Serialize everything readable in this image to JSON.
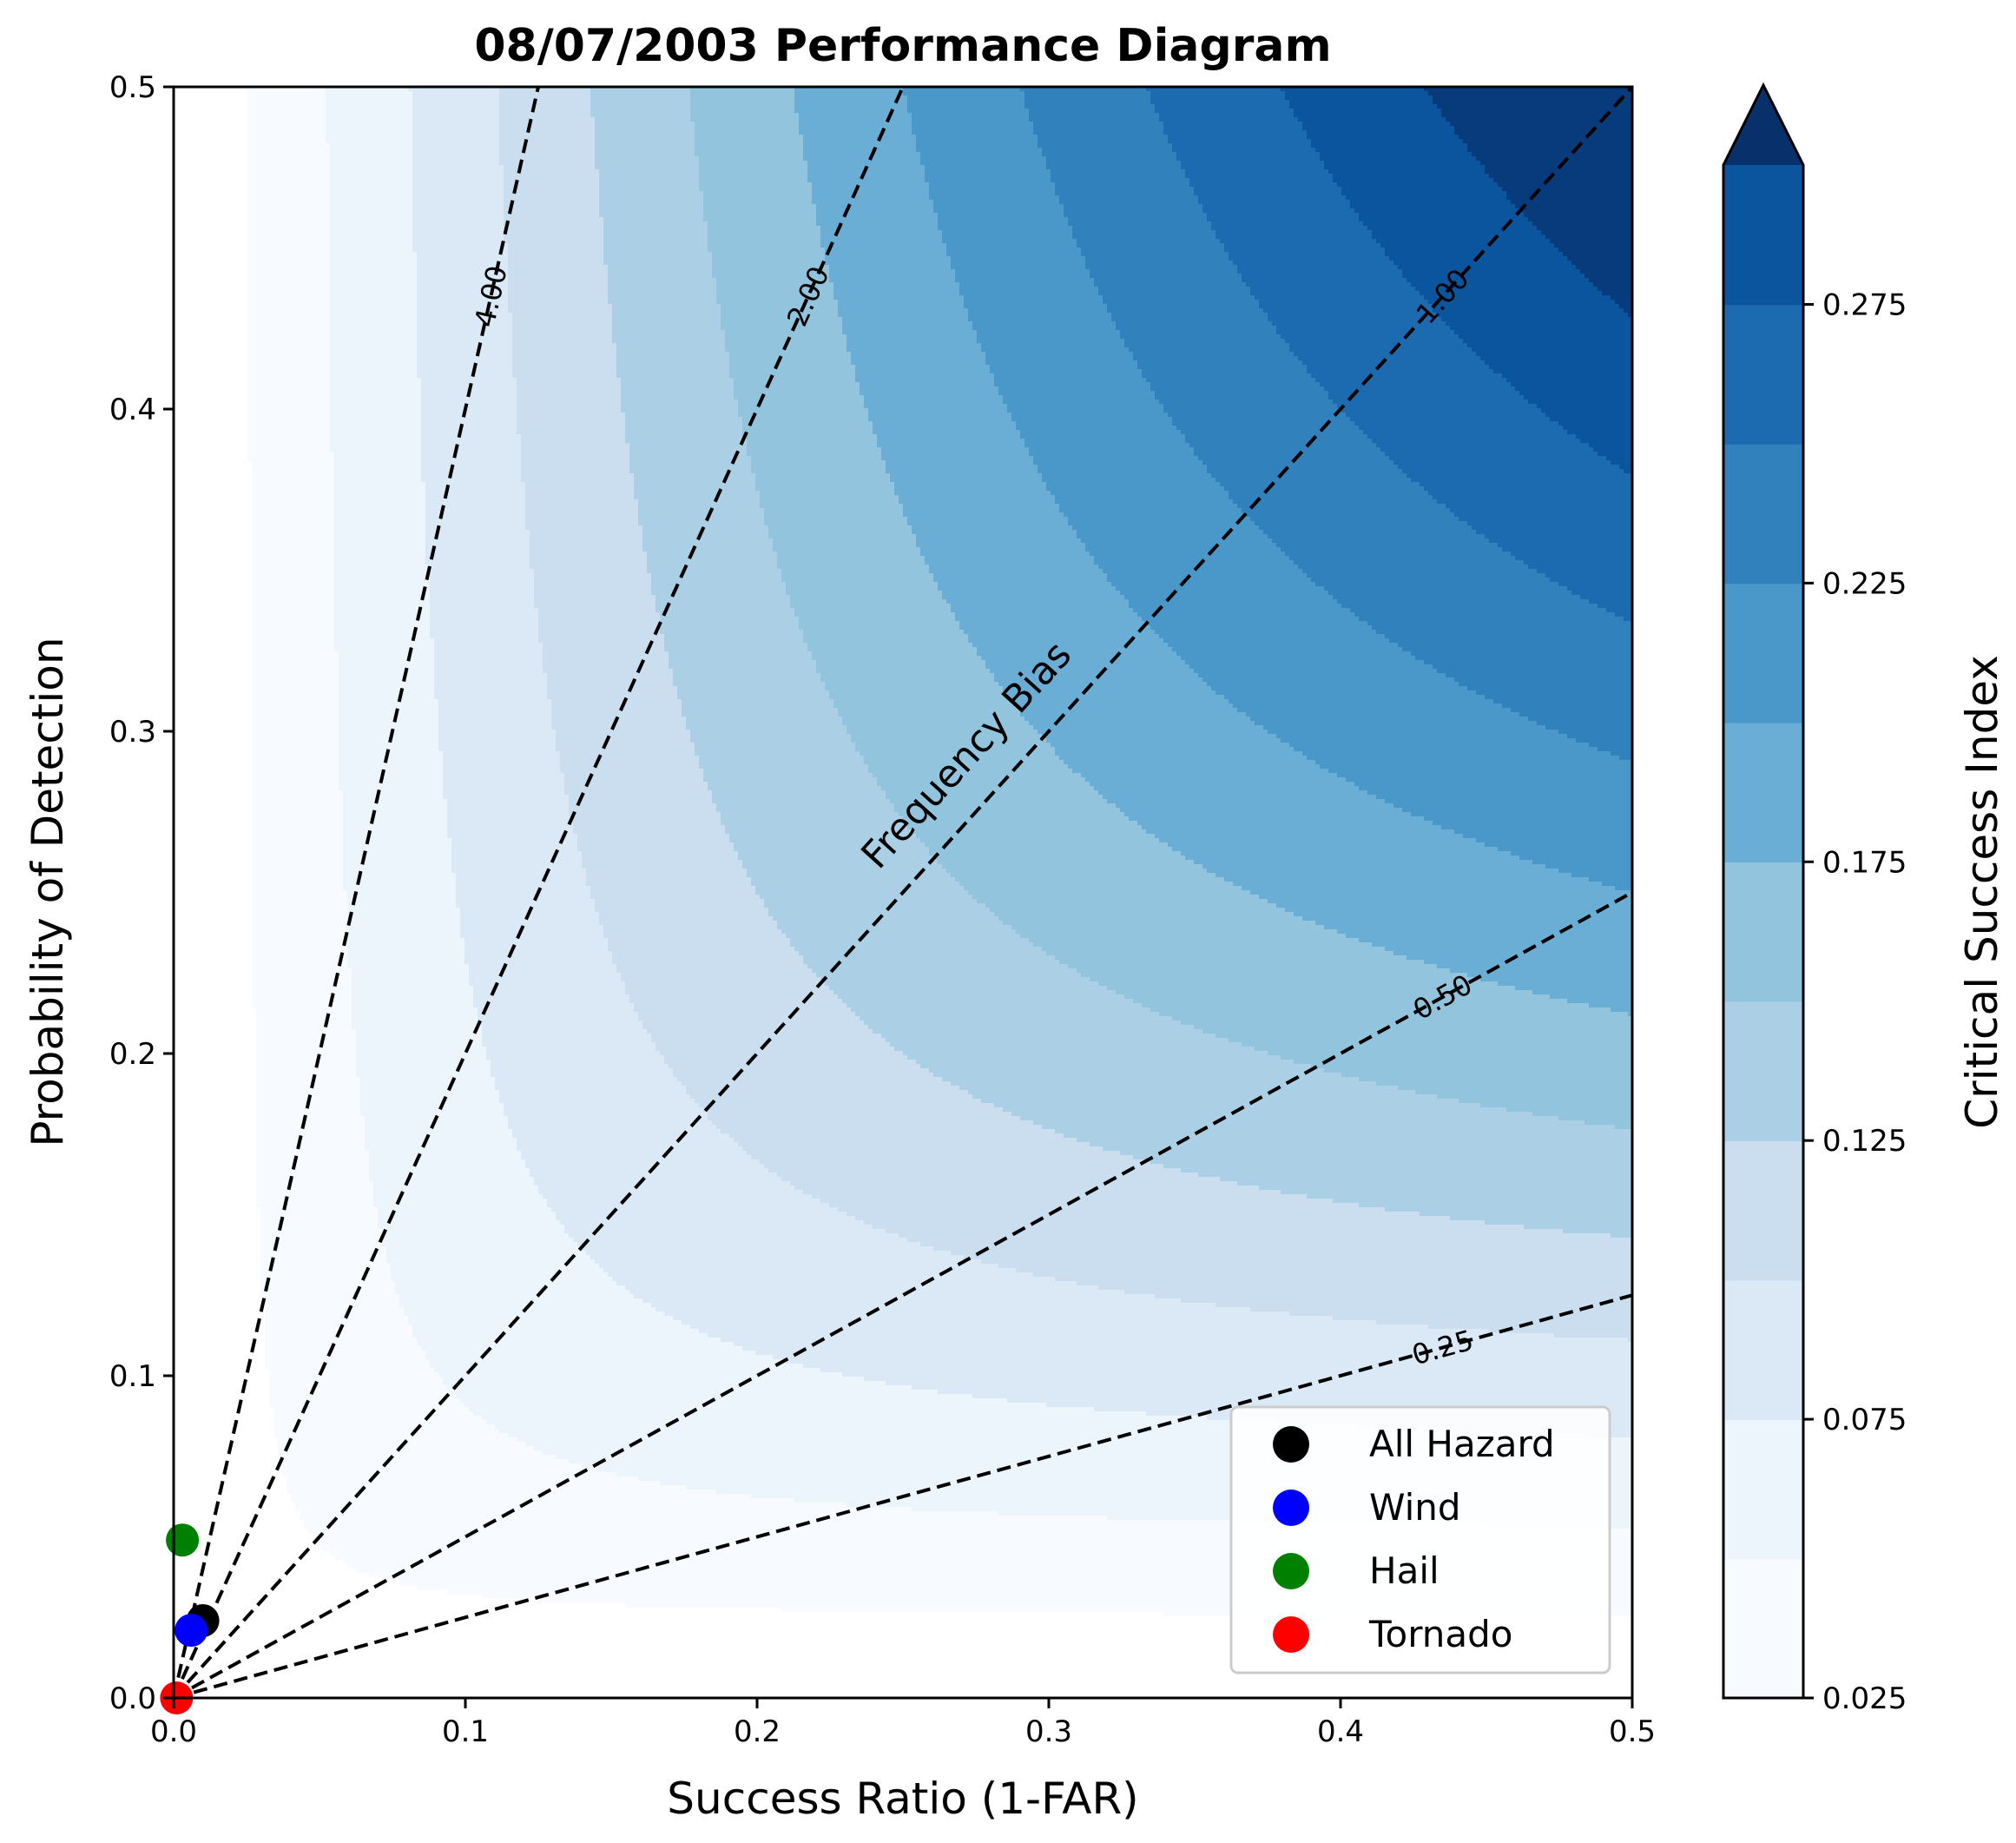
{
  "chart_data": {
    "type": "performance-diagram",
    "title": "08/07/2003 Performance Diagram",
    "xlabel": "Success Ratio (1-FAR)",
    "ylabel": "Probability of Detection",
    "xlim": [
      0.0,
      0.5
    ],
    "ylim": [
      0.0,
      0.5
    ],
    "xticks": [
      0.0,
      0.1,
      0.2,
      0.3,
      0.4,
      0.5
    ],
    "xtick_labels": [
      "0.0",
      "0.1",
      "0.2",
      "0.3",
      "0.4",
      "0.5"
    ],
    "yticks": [
      0.0,
      0.1,
      0.2,
      0.3,
      0.4,
      0.5
    ],
    "ytick_labels": [
      "0.0",
      "0.1",
      "0.2",
      "0.3",
      "0.4",
      "0.5"
    ],
    "csi_levels": [
      0.025,
      0.05,
      0.075,
      0.1,
      0.125,
      0.15,
      0.175,
      0.2,
      0.225,
      0.25,
      0.275,
      0.3
    ],
    "csi_colors": [
      "#f7fbff",
      "#ecf4fc",
      "#dbe9f6",
      "#cadef0",
      "#abd0e6",
      "#92c4de",
      "#6aaed6",
      "#4a98c9",
      "#3181bd",
      "#1c6aaf",
      "#0b559f",
      "#083b7c",
      "#08306b"
    ],
    "colorbar": {
      "label": "Critical Success Index",
      "ticks": [
        0.025,
        0.075,
        0.125,
        0.175,
        0.225,
        0.275
      ],
      "tick_labels": [
        "0.025",
        "0.075",
        "0.125",
        "0.175",
        "0.225",
        "0.275"
      ],
      "extend": "max"
    },
    "bias_lines": [
      {
        "bias": 0.25,
        "label": "0.25"
      },
      {
        "bias": 0.5,
        "label": "0.50"
      },
      {
        "bias": 1.0,
        "label": "1.00"
      },
      {
        "bias": 2.0,
        "label": "2.00"
      },
      {
        "bias": 4.0,
        "label": "4.00"
      }
    ],
    "bias_annotation": "Frequency Bias",
    "series": [
      {
        "name": "All Hazard",
        "color": "#000000",
        "x": 0.01,
        "y": 0.024
      },
      {
        "name": "Wind",
        "color": "#0000ff",
        "x": 0.006,
        "y": 0.021
      },
      {
        "name": "Hail",
        "color": "#008000",
        "x": 0.003,
        "y": 0.049
      },
      {
        "name": "Tornado",
        "color": "#ff0000",
        "x": 0.001,
        "y": 0.0
      }
    ],
    "legend_position": "lower-right"
  }
}
